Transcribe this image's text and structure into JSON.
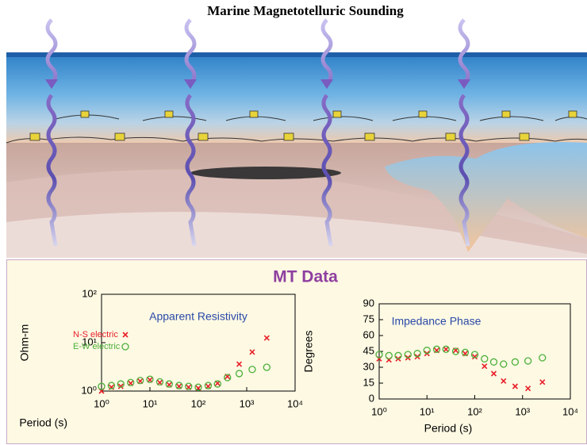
{
  "title": "Marine Magnetotelluric Sounding",
  "panel_title": "MT Data",
  "chart_data": [
    {
      "type": "scatter",
      "title": "Apparent Resistivity",
      "xlabel": "Period (s)",
      "ylabel": "Ohm-m",
      "xscale": "log",
      "yscale": "log",
      "legend": "upper left",
      "xlim": [
        1,
        10000
      ],
      "ylim": [
        1,
        100
      ],
      "xticks": [
        {
          "value": 1,
          "label": "10⁰"
        },
        {
          "value": 10,
          "label": "10¹"
        },
        {
          "value": 100,
          "label": "10²"
        },
        {
          "value": 1000,
          "label": "10³"
        },
        {
          "value": 10000,
          "label": "10⁴"
        }
      ],
      "yticks": [
        {
          "value": 1,
          "label": "10⁰"
        },
        {
          "value": 10,
          "label": "10¹"
        },
        {
          "value": 100,
          "label": "10²"
        }
      ],
      "x": [
        1,
        1.6,
        2.5,
        4,
        6.3,
        10,
        16,
        25,
        40,
        63,
        100,
        160,
        250,
        400,
        700,
        1300,
        2600
      ],
      "series": [
        {
          "name": "N-S electric",
          "color": "#e8202a",
          "marker": "x",
          "values": [
            1.0,
            1.2,
            1.25,
            1.45,
            1.6,
            1.7,
            1.5,
            1.35,
            1.25,
            1.2,
            1.15,
            1.25,
            1.45,
            2.0,
            3.6,
            6.4,
            12.5
          ]
        },
        {
          "name": "E-W electric",
          "color": "#4caf3a",
          "marker": "circle",
          "values": [
            1.25,
            1.3,
            1.4,
            1.5,
            1.65,
            1.75,
            1.55,
            1.4,
            1.3,
            1.25,
            1.2,
            1.3,
            1.4,
            1.9,
            2.3,
            2.8,
            3.1
          ]
        }
      ]
    },
    {
      "type": "scatter",
      "title": "Impedance Phase",
      "xlabel": "Period (s)",
      "ylabel": "Degrees",
      "xscale": "log",
      "legend": "none",
      "xlim": [
        1,
        10000
      ],
      "ylim": [
        0,
        90
      ],
      "xticks": [
        {
          "value": 1,
          "label": "10⁰"
        },
        {
          "value": 10,
          "label": "10¹"
        },
        {
          "value": 100,
          "label": "10²"
        },
        {
          "value": 1000,
          "label": "10³"
        },
        {
          "value": 10000,
          "label": "10⁴"
        }
      ],
      "yticks": [
        0,
        15,
        30,
        45,
        60,
        75,
        90
      ],
      "x": [
        1,
        1.6,
        2.5,
        4,
        6.3,
        10,
        16,
        25,
        40,
        63,
        100,
        160,
        250,
        400,
        700,
        1300,
        2600
      ],
      "series": [
        {
          "name": "N-S electric",
          "color": "#e8202a",
          "marker": "x",
          "values": [
            38,
            37,
            38,
            39,
            40,
            43,
            46,
            47,
            46,
            43,
            40,
            31,
            24,
            17,
            12,
            10,
            16
          ]
        },
        {
          "name": "E-W electric",
          "color": "#4caf3a",
          "marker": "circle",
          "values": [
            42,
            41,
            41,
            42,
            43,
            46,
            47,
            47,
            45,
            44,
            42,
            38,
            35,
            33,
            35,
            36,
            39
          ]
        }
      ]
    }
  ]
}
